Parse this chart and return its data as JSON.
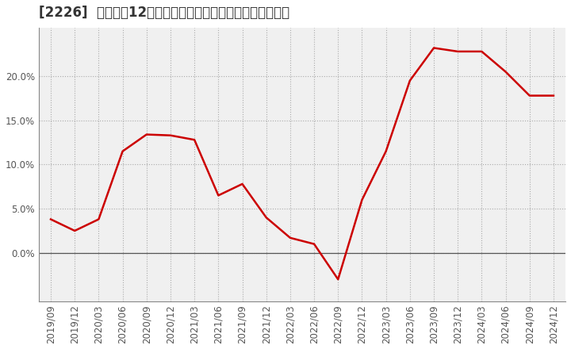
{
  "title": "[2226]  売上高の12か月移動合計の対前年同期増減率の推移",
  "line_color": "#cc0000",
  "background_color": "#ffffff",
  "plot_bg_color": "#f0f0f0",
  "grid_color": "#aaaaaa",
  "grid_style": "dotted",
  "dates": [
    "2019/09",
    "2019/12",
    "2020/03",
    "2020/06",
    "2020/09",
    "2020/12",
    "2021/03",
    "2021/06",
    "2021/09",
    "2021/12",
    "2022/03",
    "2022/06",
    "2022/09",
    "2022/12",
    "2023/03",
    "2023/06",
    "2023/09",
    "2023/12",
    "2024/03",
    "2024/06",
    "2024/09",
    "2024/12"
  ],
  "values": [
    0.038,
    0.025,
    0.038,
    0.115,
    0.134,
    0.133,
    0.128,
    0.065,
    0.078,
    0.04,
    0.017,
    0.01,
    -0.03,
    0.06,
    0.115,
    0.195,
    0.232,
    0.228,
    0.228,
    0.205,
    0.178,
    0.178
  ],
  "ylim": [
    -0.055,
    0.255
  ],
  "yticks": [
    0.0,
    0.05,
    0.1,
    0.15,
    0.2
  ],
  "title_fontsize": 12,
  "tick_fontsize": 8.5,
  "title_color": "#333333",
  "tick_color": "#555555",
  "spine_color": "#888888",
  "zero_line_color": "#555555"
}
